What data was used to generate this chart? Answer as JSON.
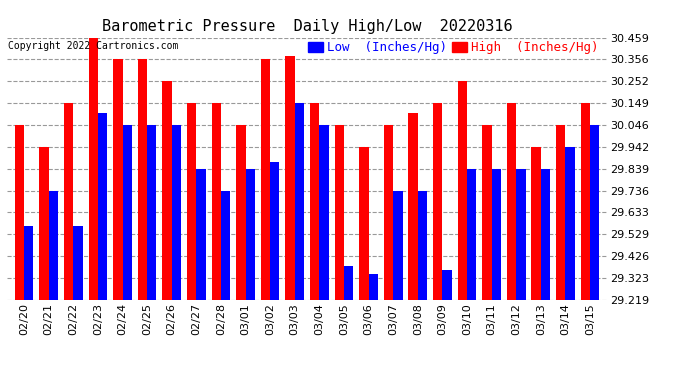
{
  "title": "Barometric Pressure  Daily High/Low  20220316",
  "copyright": "Copyright 2022 Cartronics.com",
  "legend_low": "Low  (Inches/Hg)",
  "legend_high": "High  (Inches/Hg)",
  "dates": [
    "02/20",
    "02/21",
    "02/22",
    "02/23",
    "02/24",
    "02/25",
    "02/26",
    "02/27",
    "02/28",
    "03/01",
    "03/02",
    "03/03",
    "03/04",
    "03/05",
    "03/06",
    "03/07",
    "03/08",
    "03/09",
    "03/10",
    "03/11",
    "03/12",
    "03/13",
    "03/14",
    "03/15"
  ],
  "high_values": [
    30.046,
    29.942,
    30.149,
    30.459,
    30.356,
    30.356,
    30.252,
    30.149,
    30.149,
    30.046,
    30.356,
    30.37,
    30.149,
    30.046,
    29.942,
    30.046,
    30.102,
    30.149,
    30.252,
    30.046,
    30.149,
    29.942,
    30.046,
    30.149
  ],
  "low_values": [
    29.57,
    29.736,
    29.57,
    30.102,
    30.046,
    30.046,
    30.046,
    29.839,
    29.736,
    29.839,
    29.87,
    30.149,
    30.046,
    29.38,
    29.34,
    29.736,
    29.736,
    29.36,
    29.839,
    29.839,
    29.839,
    29.839,
    29.942,
    30.046
  ],
  "ylim_min": 29.219,
  "ylim_max": 30.459,
  "yticks": [
    29.219,
    29.323,
    29.426,
    29.529,
    29.633,
    29.736,
    29.839,
    29.942,
    30.046,
    30.149,
    30.252,
    30.356,
    30.459
  ],
  "bar_width": 0.38,
  "high_color": "#ff0000",
  "low_color": "#0000ff",
  "background_color": "#ffffff",
  "grid_color": "#999999",
  "title_fontsize": 11,
  "tick_fontsize": 8,
  "legend_fontsize": 9,
  "fig_width": 6.9,
  "fig_height": 3.75,
  "dpi": 100
}
